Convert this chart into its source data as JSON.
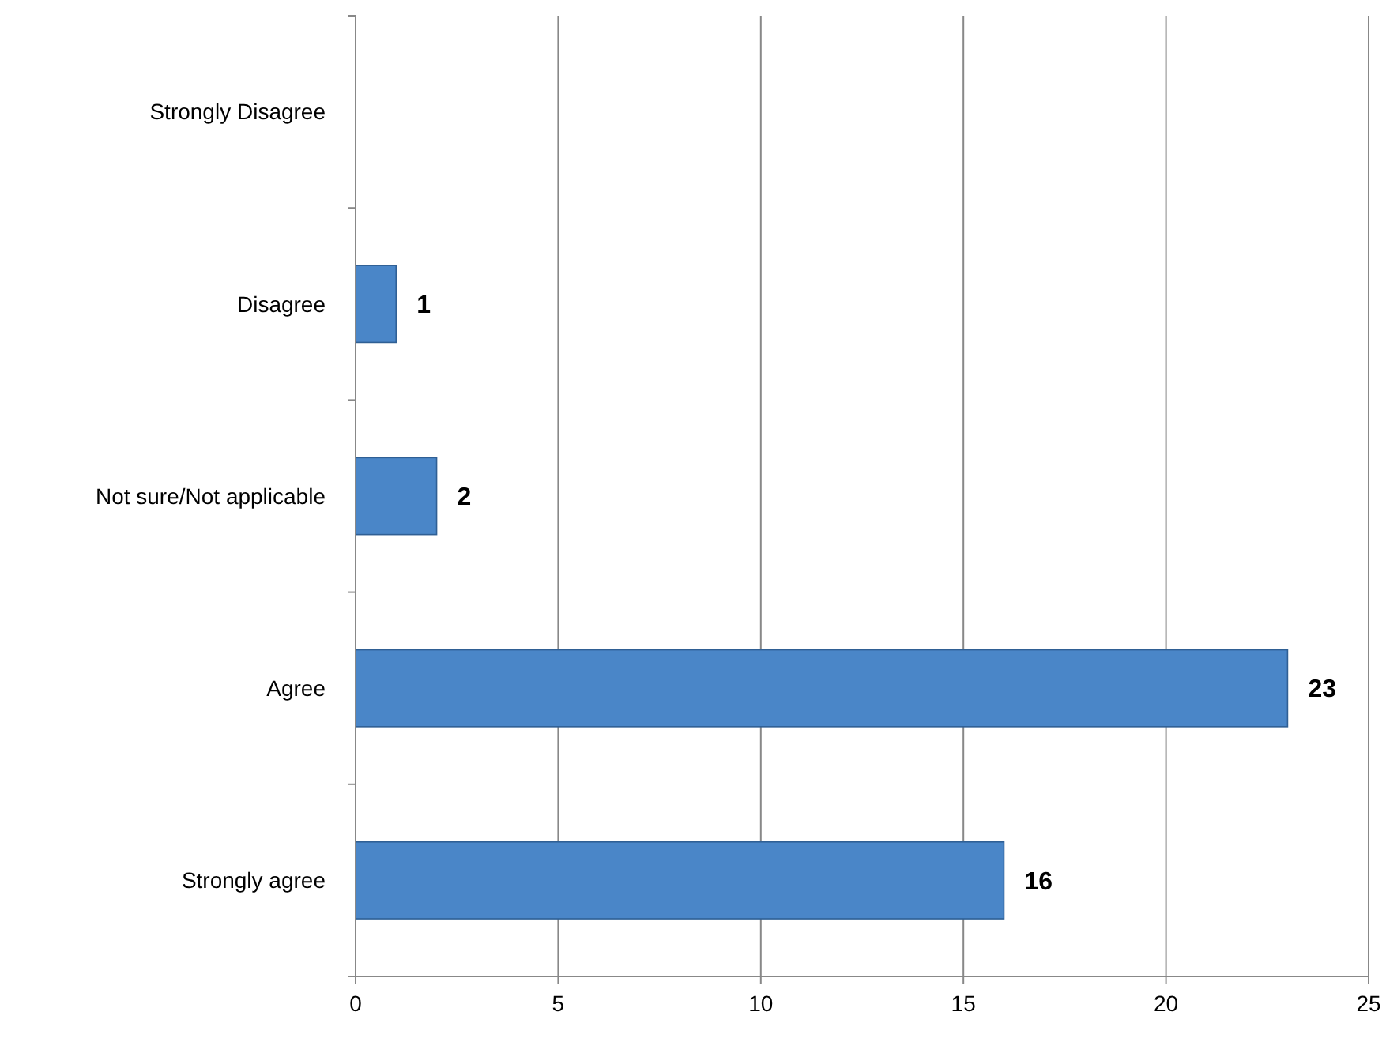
{
  "chart_data": {
    "type": "bar",
    "orientation": "horizontal",
    "categories": [
      "Strongly Disagree",
      "Disagree",
      "Not sure/Not applicable",
      "Agree",
      "Strongly agree"
    ],
    "values": [
      0,
      1,
      2,
      23,
      16
    ],
    "value_labels": [
      null,
      "1",
      "2",
      "23",
      "16"
    ],
    "color": "#4a86c8",
    "xlim": [
      0,
      25
    ],
    "xticks": [
      0,
      5,
      10,
      15,
      20,
      25
    ],
    "grid": "x"
  }
}
